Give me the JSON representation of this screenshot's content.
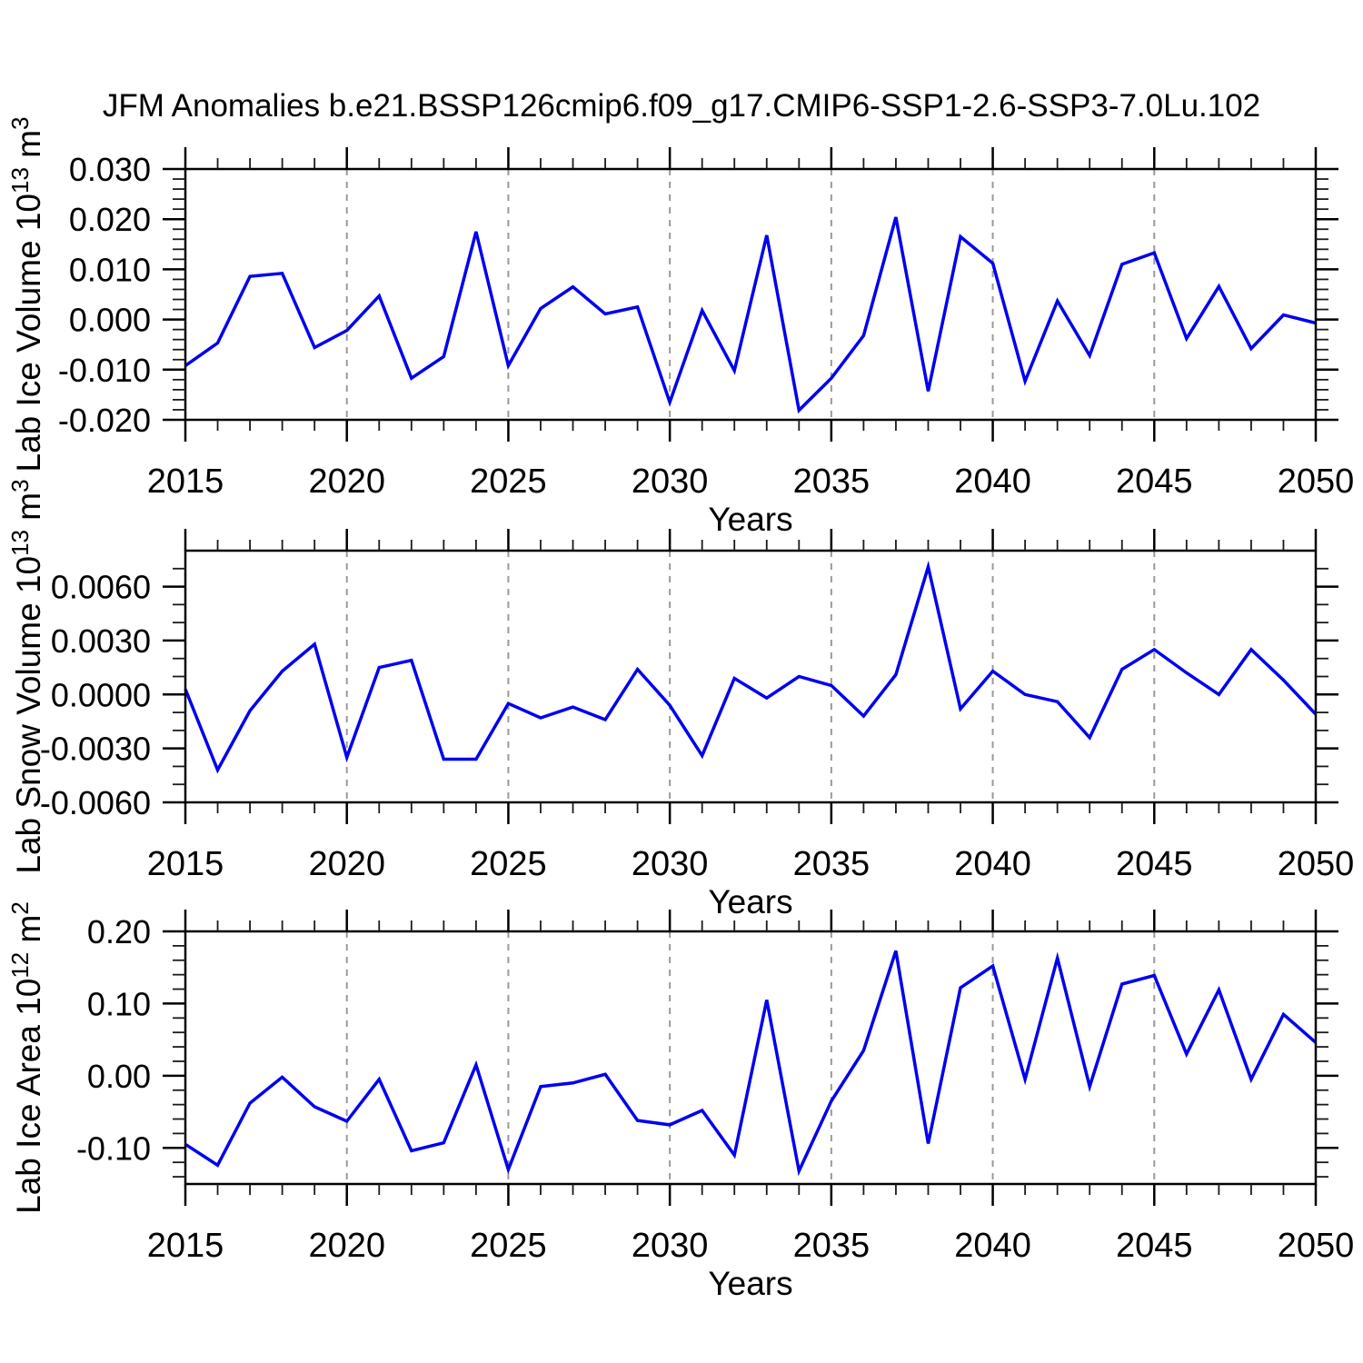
{
  "title": "JFM Anomalies b.e21.BSSP126cmip6.f09_g17.CMIP6-SSP1-2.6-SSP3-7.0Lu.102",
  "style": {
    "line_color": "#0000F0",
    "grid_color": "#9a9a9a",
    "axis_color": "#000000",
    "background": "#ffffff"
  },
  "x_axis": {
    "label": "Years",
    "years": [
      2015,
      2016,
      2017,
      2018,
      2019,
      2020,
      2021,
      2022,
      2023,
      2024,
      2025,
      2026,
      2027,
      2028,
      2029,
      2030,
      2031,
      2032,
      2033,
      2034,
      2035,
      2036,
      2037,
      2038,
      2039,
      2040,
      2041,
      2042,
      2043,
      2044,
      2045,
      2046,
      2047,
      2048,
      2049,
      2050
    ],
    "major_tick_years": [
      2015,
      2020,
      2025,
      2030,
      2035,
      2040,
      2045,
      2050
    ],
    "tick_labels": [
      "2015",
      "2020",
      "2025",
      "2030",
      "2035",
      "2040",
      "2045",
      "2050"
    ],
    "gridline_years": [
      2020,
      2025,
      2030,
      2035,
      2040,
      2045
    ],
    "xlim": [
      2015,
      2050
    ]
  },
  "chart_data": [
    {
      "id": "ice_volume",
      "type": "line",
      "title": "",
      "xlabel": "Years",
      "ylabel": "Lab Ice Volume 10^13 m^3",
      "ylabel_parts": [
        {
          "t": "Lab Ice Volume 10"
        },
        {
          "s": "13"
        },
        {
          "t": " m"
        },
        {
          "s": "3"
        }
      ],
      "ylim": [
        -0.02,
        0.03
      ],
      "yticks": [
        0.03,
        0.02,
        0.01,
        0.0,
        -0.01,
        -0.02
      ],
      "ytick_labels": [
        "0.030",
        "0.020",
        "0.010",
        "0.000",
        "-0.010",
        "-0.020"
      ],
      "ytick_minor_step": 0.002,
      "grid": "vertical-dashed",
      "legend": "none",
      "values": [
        -0.0092,
        -0.0047,
        0.0086,
        0.0092,
        -0.0056,
        -0.0022,
        0.0047,
        -0.0117,
        -0.0074,
        0.0175,
        -0.0092,
        0.0022,
        0.0065,
        0.0011,
        0.0025,
        -0.0165,
        0.0018,
        -0.0102,
        0.0168,
        -0.0181,
        -0.0117,
        -0.0032,
        0.0204,
        -0.0143,
        0.0165,
        0.0112,
        -0.0123,
        0.0037,
        -0.0072,
        0.011,
        0.0133,
        -0.0038,
        0.0066,
        -0.0058,
        0.0009,
        -0.0007
      ]
    },
    {
      "id": "snow_volume",
      "type": "line",
      "title": "",
      "xlabel": "Years",
      "ylabel": "Lab Snow Volume 10^13 m^3",
      "ylabel_parts": [
        {
          "t": "Lab Snow Volume 10"
        },
        {
          "s": "13"
        },
        {
          "t": " m"
        },
        {
          "s": "3"
        }
      ],
      "ylim": [
        -0.006,
        0.008
      ],
      "yticks": [
        0.006,
        0.003,
        0.0,
        -0.003,
        -0.006
      ],
      "ytick_labels": [
        "0.0060",
        "0.0030",
        "0.0000",
        "-0.0030",
        "-0.0060"
      ],
      "ytick_minor_step": 0.001,
      "grid": "vertical-dashed",
      "legend": "none",
      "values": [
        0.0003,
        -0.0042,
        -0.0009,
        0.0013,
        0.0028,
        -0.0035,
        0.0015,
        0.0019,
        -0.0036,
        -0.0036,
        -0.0005,
        -0.0013,
        -0.0007,
        -0.0014,
        0.0014,
        -0.0006,
        -0.0034,
        0.0009,
        -0.0002,
        0.001,
        0.0005,
        -0.0012,
        0.0011,
        0.0071,
        -0.0008,
        0.0013,
        0.0,
        -0.0004,
        -0.0024,
        0.0014,
        0.0025,
        0.0012,
        0.0,
        0.0025,
        0.0008,
        -0.0011
      ]
    },
    {
      "id": "ice_area",
      "type": "line",
      "title": "",
      "xlabel": "Years",
      "ylabel": "Lab Ice Area 10^12 m^2",
      "ylabel_parts": [
        {
          "t": "Lab Ice Area 10"
        },
        {
          "s": "12"
        },
        {
          "t": " m"
        },
        {
          "s": "2"
        }
      ],
      "ylim": [
        -0.15,
        0.2
      ],
      "yticks": [
        0.2,
        0.1,
        0.0,
        -0.1
      ],
      "ytick_labels": [
        "0.20",
        "0.10",
        "0.00",
        "-0.10"
      ],
      "ytick_minor_step": 0.02,
      "grid": "vertical-dashed",
      "legend": "none",
      "values": [
        -0.095,
        -0.124,
        -0.038,
        -0.002,
        -0.043,
        -0.063,
        -0.005,
        -0.104,
        -0.093,
        0.015,
        -0.13,
        -0.015,
        -0.01,
        0.002,
        -0.062,
        -0.068,
        -0.048,
        -0.11,
        0.105,
        -0.132,
        -0.035,
        0.035,
        0.173,
        -0.094,
        0.122,
        0.152,
        -0.005,
        0.163,
        -0.015,
        0.127,
        0.139,
        0.03,
        0.119,
        -0.005,
        0.085,
        0.046
      ]
    }
  ]
}
